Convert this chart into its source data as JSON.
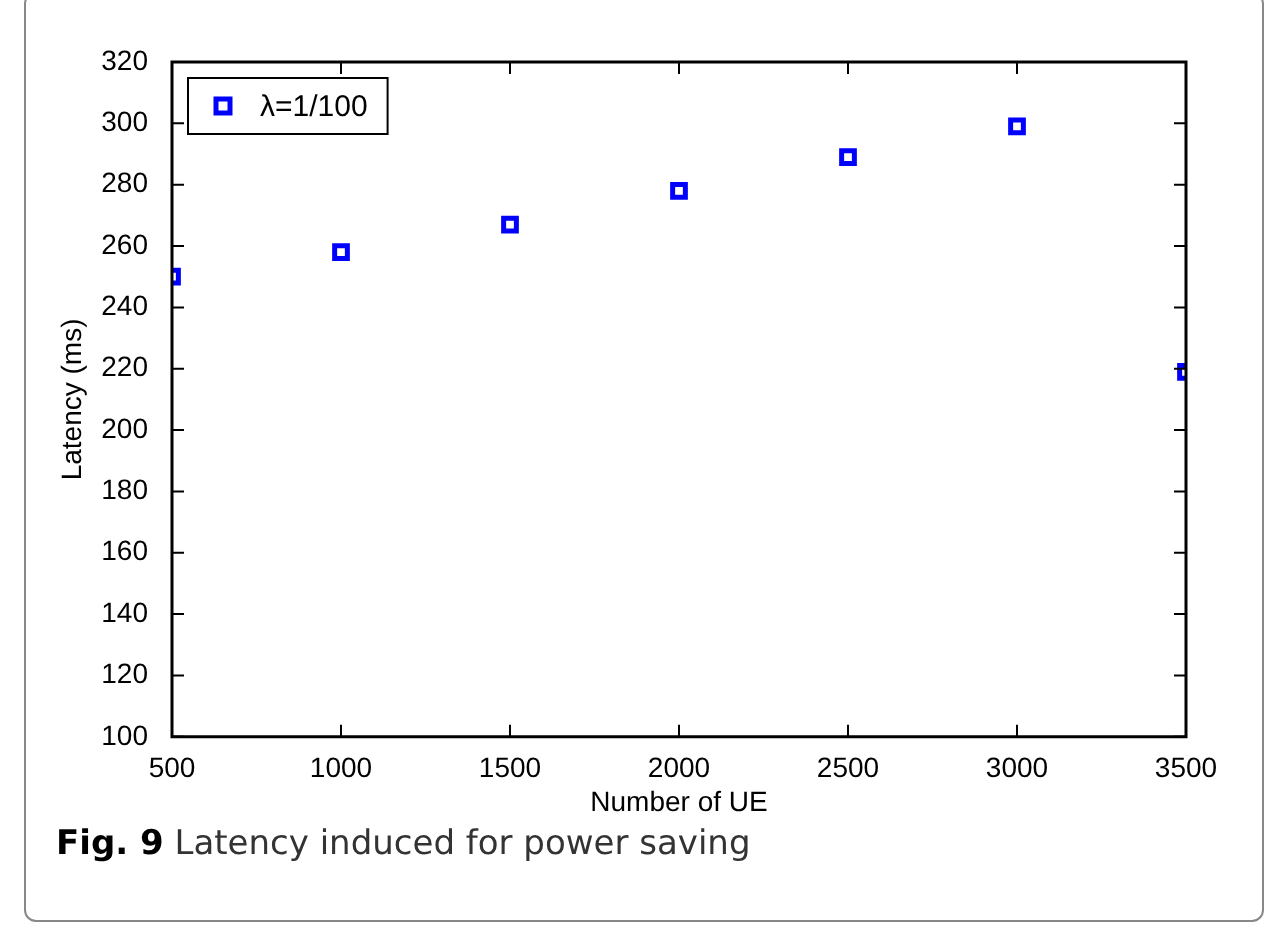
{
  "chart_data": {
    "type": "scatter",
    "xlabel": "Number of UE",
    "ylabel": "Latency (ms)",
    "x": [
      500,
      1000,
      1500,
      2000,
      2500,
      3000,
      3500
    ],
    "series": [
      {
        "name": "λ=1/100",
        "color": "#0000ff",
        "values": [
          250,
          258,
          267,
          278,
          289,
          299,
          219
        ]
      }
    ],
    "xlim": [
      500,
      3500
    ],
    "xticks": [
      500,
      1000,
      1500,
      2000,
      2500,
      3000,
      3500
    ],
    "ylim": [
      100,
      320
    ],
    "yticks": [
      100,
      120,
      140,
      160,
      180,
      200,
      220,
      240,
      260,
      280,
      300,
      320
    ],
    "grid": false,
    "legend": "top left",
    "marker": "square",
    "annotations": [
      "Fig. 9",
      "Latency induced for power saving"
    ]
  }
}
